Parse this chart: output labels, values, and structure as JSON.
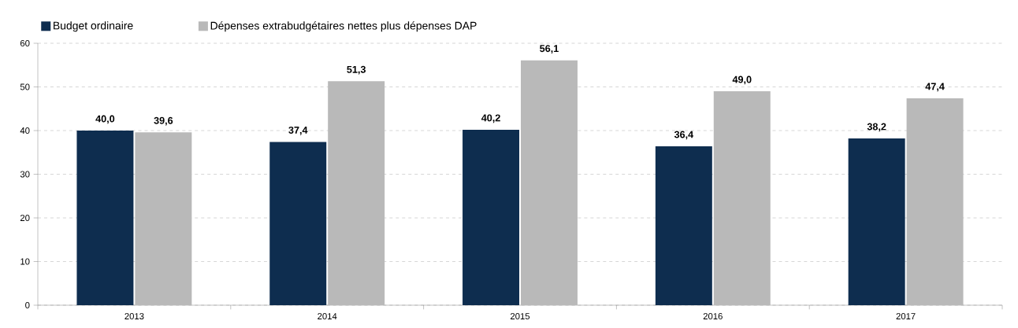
{
  "chart_data": {
    "type": "bar",
    "categories": [
      "2013",
      "2014",
      "2015",
      "2016",
      "2017"
    ],
    "series": [
      {
        "name": "Budget ordinaire",
        "color": "#0e2d4f",
        "values": [
          40.0,
          37.4,
          40.2,
          36.4,
          38.2
        ],
        "value_labels": [
          "40,0",
          "37,4",
          "40,2",
          "36,4",
          "38,2"
        ]
      },
      {
        "name": "Dépenses extrabudgétaires nettes plus dépenses DAP",
        "color": "#b9b9b9",
        "values": [
          39.6,
          51.3,
          56.1,
          49.0,
          47.4
        ],
        "value_labels": [
          "39,6",
          "51,3",
          "56,1",
          "49,0",
          "47,4"
        ]
      }
    ],
    "ylim": [
      0,
      60
    ],
    "yticks": [
      0,
      10,
      20,
      30,
      40,
      50,
      60
    ],
    "grid": "y",
    "legend": "top left"
  }
}
